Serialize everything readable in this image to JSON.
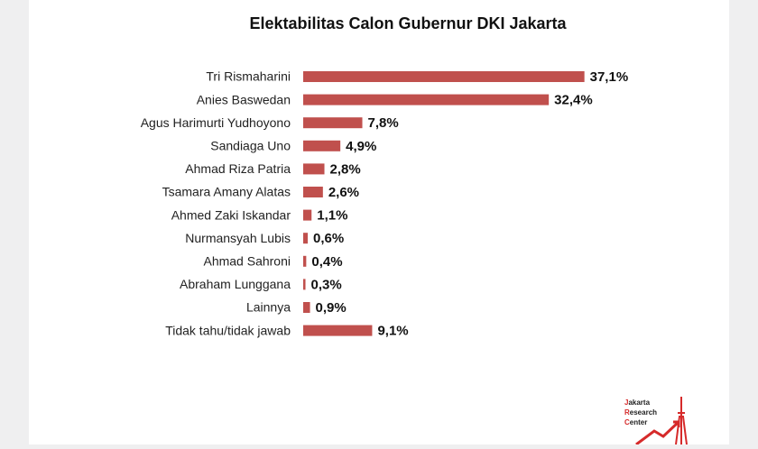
{
  "chart_data": {
    "type": "bar",
    "orientation": "horizontal",
    "title": "Elektabilitas Calon Gubernur DKI Jakarta",
    "categories": [
      "Tri Rismaharini",
      "Anies Baswedan",
      "Agus Harimurti Yudhoyono",
      "Sandiaga Uno",
      "Ahmad Riza Patria",
      "Tsamara Amany Alatas",
      "Ahmed Zaki Iskandar",
      "Nurmansyah Lubis",
      "Ahmad Sahroni",
      "Abraham Lunggana",
      "Lainnya",
      "Tidak tahu/tidak jawab"
    ],
    "values": [
      37.1,
      32.4,
      7.8,
      4.9,
      2.8,
      2.6,
      1.1,
      0.6,
      0.4,
      0.3,
      0.9,
      9.1
    ],
    "value_labels": [
      "37,1%",
      "32,4%",
      "7,8%",
      "4,9%",
      "2,8%",
      "2,6%",
      "1,1%",
      "0,6%",
      "0,4%",
      "0,3%",
      "0,9%",
      "9,1%"
    ],
    "color": "#c0504d"
  },
  "logo": {
    "initials": [
      "J",
      "R",
      "C"
    ],
    "words": [
      "akarta",
      "esearch",
      "enter"
    ]
  }
}
